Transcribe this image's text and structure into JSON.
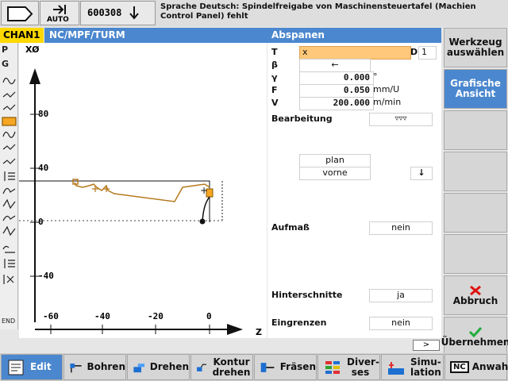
{
  "top": {
    "mode_label": "AUTO",
    "program_number": "600308",
    "alarm_text": "Sprache Deutsch: Spindelfreigabe von Maschinensteuertafel (Machien Control Panel) fehlt"
  },
  "header": {
    "channel": "CHAN1",
    "path": "NC/MPF/TURM",
    "cycle_title": "Abspanen"
  },
  "left_column": {
    "letters": [
      "P",
      "G"
    ],
    "end_label": "END"
  },
  "graphic": {
    "x_axis_label": "Z",
    "y_axis_label": "XØ",
    "y_ticks": [
      "80",
      "40",
      "0",
      "-40"
    ],
    "x_ticks": [
      "-60",
      "-40",
      "-20",
      "0"
    ]
  },
  "params": {
    "T": {
      "label": "T",
      "value": "x",
      "D_label": "D",
      "D_value": "1"
    },
    "beta": {
      "label": "β",
      "value": "←"
    },
    "gamma": {
      "label": "γ",
      "value": "0.000",
      "unit": "°"
    },
    "F": {
      "label": "F",
      "value": "0.050",
      "unit": "mm/U"
    },
    "V": {
      "label": "V",
      "value": "200.000",
      "unit": "m/min"
    },
    "bearbeitung": {
      "label": "Bearbeitung",
      "value": "▿▿▿"
    },
    "plan": "plan",
    "vorne": "vorne",
    "vorne_arrow": "↓",
    "aufmass": {
      "label": "Aufmaß",
      "value": "nein"
    },
    "hinterschnitte": {
      "label": "Hinterschnitte",
      "value": "ja"
    },
    "eingrenzen": {
      "label": "Eingrenzen",
      "value": "nein"
    },
    "scroll_label": ">"
  },
  "right_softkeys": {
    "werkzeug": "Werkzeug auswählen",
    "grafische": "Grafische Ansicht",
    "abbruch": "Abbruch",
    "uebernehmen": "Übernehmen"
  },
  "bottom_softkeys": {
    "edit": "Edit",
    "bohren": "Bohren",
    "drehen": "Drehen",
    "kontur": "Kontur drehen",
    "fraesen": "Fräsen",
    "diverses": "Diver- ses",
    "simulation": "Simu- lation",
    "anwahl": "Anwahl",
    "nc_badge": "NC"
  },
  "colors": {
    "accent_blue": "#4b87ce",
    "channel_yellow": "#ffd800",
    "input_orange": "#ffc87a",
    "contour_brown": "#b57a1e",
    "abort_red": "#e01010",
    "accept_green": "#1fae3a"
  }
}
